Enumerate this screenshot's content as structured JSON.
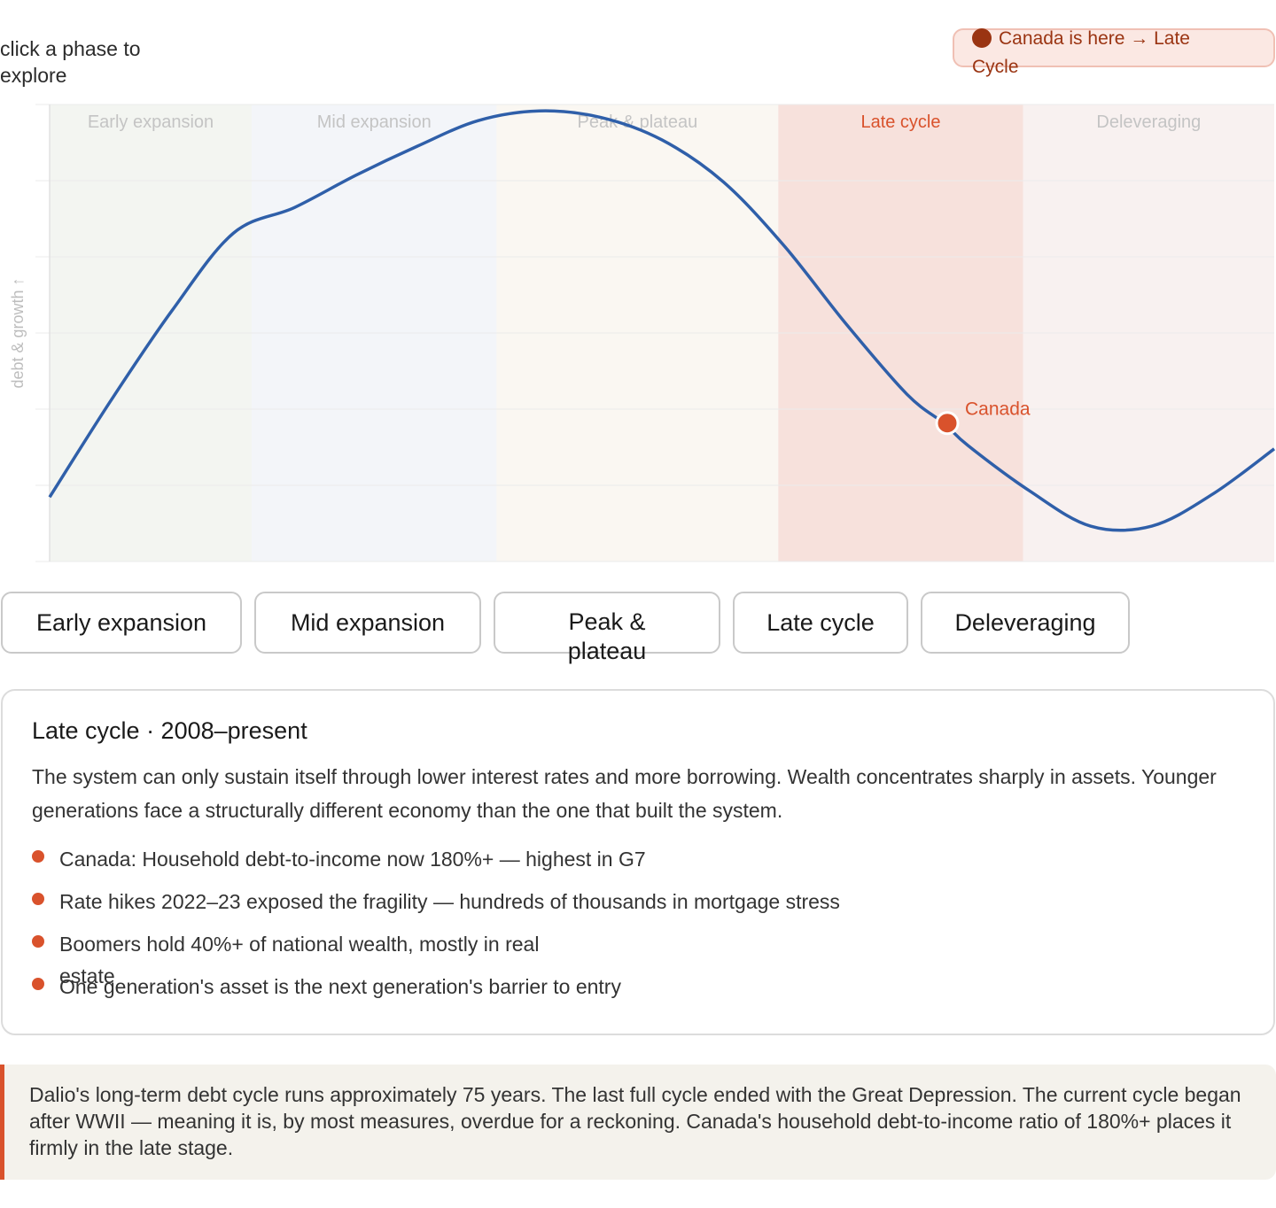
{
  "hint": "click a phase to explore",
  "badge": {
    "text": "Canada is here → Late Cycle"
  },
  "chart_data": {
    "type": "line",
    "ylabel": "debt & growth ↑",
    "phases": [
      {
        "label": "Early expansion",
        "x_start": 0,
        "x_end": 1.65,
        "color": "#f3f5f1",
        "active": false
      },
      {
        "label": "Mid expansion",
        "x_start": 1.65,
        "x_end": 3.65,
        "color": "#f3f5f9",
        "active": false
      },
      {
        "label": "Peak & plateau",
        "x_start": 3.65,
        "x_end": 5.95,
        "color": "#faf7f2",
        "active": false
      },
      {
        "label": "Late cycle",
        "x_start": 5.95,
        "x_end": 7.95,
        "color": "#f7e1dc",
        "active": true
      },
      {
        "label": "Deleveraging",
        "x_start": 7.95,
        "x_end": 10,
        "color": "#f8f1f0",
        "active": false
      }
    ],
    "x": [
      0,
      0.5,
      1.0,
      1.5,
      2.0,
      2.5,
      3.0,
      3.5,
      4.0,
      4.5,
      5.0,
      5.5,
      6.0,
      6.5,
      7.0,
      7.3,
      7.5,
      8.0,
      8.5,
      9.0,
      9.5,
      10.0
    ],
    "y": [
      1.0,
      2.5,
      3.9,
      5.1,
      5.5,
      6.0,
      6.45,
      6.85,
      7.0,
      6.9,
      6.55,
      5.9,
      4.9,
      3.7,
      2.6,
      2.15,
      1.8,
      1.1,
      0.55,
      0.55,
      1.05,
      1.75
    ],
    "ylim": [
      0,
      7.1
    ],
    "xlim": [
      0,
      10
    ],
    "grid": true,
    "marker": {
      "label": "Canada",
      "x": 7.33,
      "y": 2.15
    },
    "line_color": "#2f5fa9",
    "marker_color": "#d9522c"
  },
  "buttons": [
    {
      "label": "Early expansion"
    },
    {
      "label": "Mid expansion"
    },
    {
      "label": "Peak & plateau"
    },
    {
      "label": "Late cycle"
    },
    {
      "label": "Deleveraging"
    }
  ],
  "detail": {
    "title": "Late cycle · 2008–present",
    "description": "The system can only sustain itself through lower interest rates and more borrowing. Wealth concentrates sharply in assets. Younger generations face a structurally different economy than the one that built the system.",
    "bullets": [
      "Canada: Household debt-to-income now 180%+ — highest in G7",
      "Rate hikes 2022–23 exposed the fragility — hundreds of thousands in mortgage stress",
      "Boomers hold 40%+ of national wealth, mostly in real estate",
      "One generation's asset is the next generation's barrier to entry"
    ]
  },
  "note": "Dalio's long-term debt cycle runs approximately 75 years. The last full cycle ended with the Great Depression. The current cycle began after WWII — meaning it is, by most measures, overdue for a reckoning. Canada's household debt-to-income ratio of 180%+ places it firmly in the late stage.",
  "colors": {
    "accent": "#d9522c",
    "line": "#2f5fa9",
    "badge_text": "#9a3412"
  }
}
